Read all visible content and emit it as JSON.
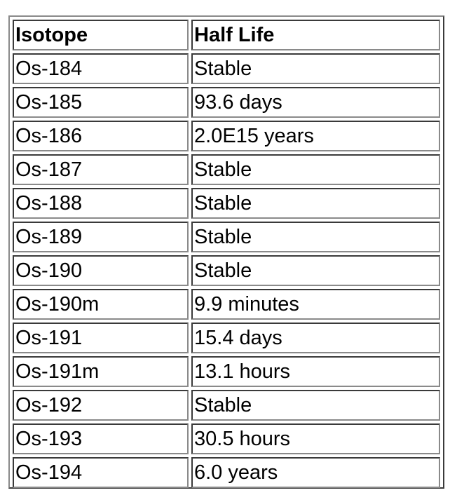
{
  "table": {
    "headers": [
      "Isotope",
      "Half Life"
    ],
    "rows": [
      [
        "Os-184",
        "Stable"
      ],
      [
        "Os-185",
        "93.6 days"
      ],
      [
        "Os-186",
        "2.0E15 years"
      ],
      [
        "Os-187",
        "Stable"
      ],
      [
        "Os-188",
        "Stable"
      ],
      [
        "Os-189",
        "Stable"
      ],
      [
        "Os-190",
        "Stable"
      ],
      [
        "Os-190m",
        "9.9 minutes"
      ],
      [
        "Os-191",
        "15.4 days"
      ],
      [
        "Os-191m",
        "13.1 hours"
      ],
      [
        "Os-192",
        "Stable"
      ],
      [
        "Os-193",
        "30.5 hours"
      ],
      [
        "Os-194",
        "6.0 years"
      ]
    ]
  }
}
